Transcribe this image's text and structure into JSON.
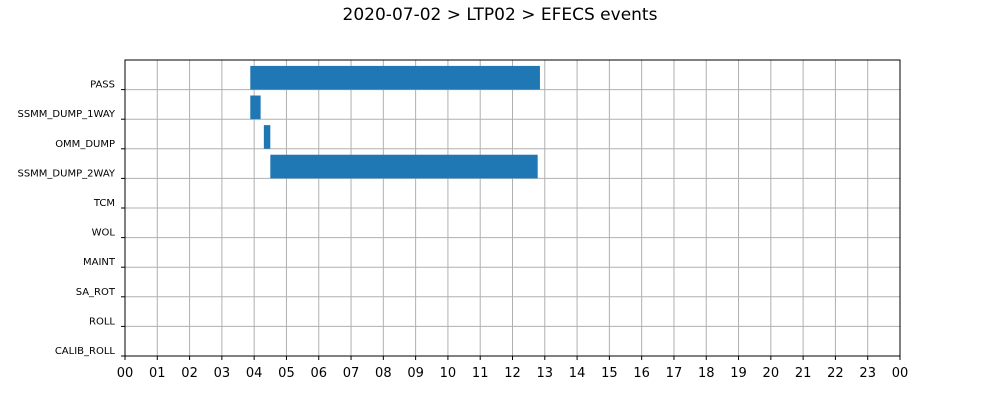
{
  "chart_data": {
    "type": "bar",
    "orientation": "horizontal",
    "title": "2020-07-02 > LTP02 > EFECS events",
    "xlabel": "",
    "ylabel": "",
    "categories": [
      "PASS",
      "SSMM_DUMP_1WAY",
      "OMM_DUMP",
      "SSMM_DUMP_2WAY",
      "TCM",
      "WOL",
      "MAINT",
      "SA_ROT",
      "ROLL",
      "CALIB_ROLL"
    ],
    "x_tick_labels": [
      "00",
      "01",
      "02",
      "03",
      "04",
      "05",
      "06",
      "07",
      "08",
      "09",
      "10",
      "11",
      "12",
      "13",
      "14",
      "15",
      "16",
      "17",
      "18",
      "19",
      "20",
      "21",
      "22",
      "23",
      "00"
    ],
    "xlim": [
      0,
      24
    ],
    "grid": true,
    "bar_color": "#1f77b4",
    "events": [
      {
        "category": "PASS",
        "start": 3.88,
        "end": 12.85
      },
      {
        "category": "SSMM_DUMP_1WAY",
        "start": 3.88,
        "end": 4.2
      },
      {
        "category": "OMM_DUMP",
        "start": 4.3,
        "end": 4.5
      },
      {
        "category": "SSMM_DUMP_2WAY",
        "start": 4.5,
        "end": 12.78
      }
    ]
  }
}
